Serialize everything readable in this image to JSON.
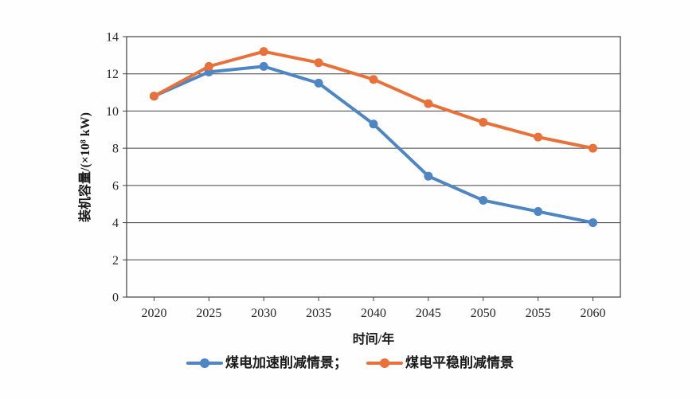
{
  "chart_data": {
    "type": "line",
    "x": [
      "2020",
      "2025",
      "2030",
      "2035",
      "2040",
      "2045",
      "2050",
      "2055",
      "2060"
    ],
    "series": [
      {
        "name": "煤电加速削减情景",
        "legend_label": "煤电加速削减情景；",
        "color": "#4e86c4",
        "values": [
          10.8,
          12.1,
          12.4,
          11.5,
          9.3,
          6.5,
          5.2,
          4.6,
          4.0
        ]
      },
      {
        "name": "煤电平稳削减情景",
        "legend_label": "煤电平稳削减情景",
        "color": "#e8713a",
        "values": [
          10.8,
          12.4,
          13.2,
          12.6,
          11.7,
          10.4,
          9.4,
          8.6,
          8.0
        ]
      }
    ],
    "xlabel": "时间/年",
    "ylabel": "装机容量/(×10⁸ kW)",
    "ylim": [
      0,
      14
    ],
    "yticks": [
      0,
      2,
      4,
      6,
      8,
      10,
      12,
      14
    ],
    "grid": "horizontal",
    "marker": "circle",
    "legend_position": "bottom"
  },
  "colors": {
    "axis": "#404040",
    "text": "#262626",
    "background": "#fefefe"
  }
}
